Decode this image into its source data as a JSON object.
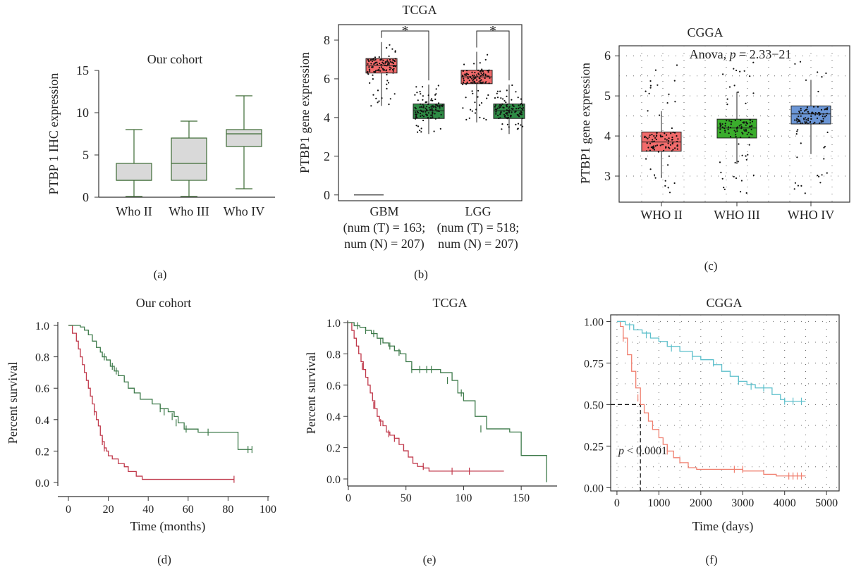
{
  "panel_labels": [
    "(a)",
    "(b)",
    "(c)",
    "(d)",
    "(e)",
    "(f)"
  ],
  "chart_data": [
    {
      "panel": "(a)",
      "type": "box",
      "title": "Our cohort",
      "ylabel": "PTBP 1 IHC expression",
      "xlabel": "",
      "ylim": [
        0,
        15
      ],
      "yticks": [
        "0",
        "5",
        "10",
        "15"
      ],
      "categories": [
        "Who II",
        "Who III",
        "Who IV"
      ],
      "boxes": [
        {
          "min": 0.1,
          "q1": 2,
          "median": 2,
          "q3": 4,
          "max": 8
        },
        {
          "min": 0.1,
          "q1": 2,
          "median": 4,
          "q3": 7,
          "max": 9
        },
        {
          "min": 1,
          "q1": 6,
          "median": 7.5,
          "q3": 8,
          "max": 12
        }
      ],
      "colors": {
        "fill": "#d9d9d9",
        "stroke": "#3d6b35"
      }
    },
    {
      "panel": "(b)",
      "type": "box",
      "title": "TCGA",
      "ylabel": "PTBP1 gene expression",
      "ylim": [
        -0.3,
        8.8
      ],
      "yticks": [
        "0",
        "2",
        "4",
        "6",
        "8"
      ],
      "groups": [
        {
          "label_lines": [
            "GBM",
            "(num (T) = 163;",
            "num (N) = 207)"
          ],
          "tumor": {
            "min": 4.6,
            "q1": 6.3,
            "median": 6.7,
            "q3": 7.05,
            "max": 7.9
          },
          "normal": {
            "min": 3.15,
            "q1": 3.95,
            "median": 4.35,
            "q3": 4.7,
            "max": 5.7
          }
        },
        {
          "label_lines": [
            "LGG",
            "(num (T) = 518;",
            "num (N) = 207)"
          ],
          "tumor": {
            "min": 3.75,
            "q1": 5.75,
            "median": 6.1,
            "q3": 6.45,
            "max": 7.4
          },
          "normal": {
            "min": 3.15,
            "q1": 3.95,
            "median": 4.35,
            "q3": 4.7,
            "max": 5.7
          }
        }
      ],
      "significance": [
        "*",
        "*"
      ],
      "colors": {
        "tumor": "#f26b6b",
        "normal": "#2e8b45",
        "star": "#e8432b"
      }
    },
    {
      "panel": "(c)",
      "type": "box",
      "title": "CGGA",
      "annotation_prefix": "Anova, ",
      "annotation_p": "p",
      "annotation_value": " = 2.33−21",
      "ylabel": "PTBP1 gene expression",
      "ylim": [
        2.35,
        6.25
      ],
      "yticks": [
        "3",
        "4",
        "5",
        "6"
      ],
      "categories": [
        "WHO II",
        "WHO III",
        "WHO IV"
      ],
      "boxes": [
        {
          "min": 2.95,
          "q1": 3.62,
          "median": 3.85,
          "q3": 4.1,
          "max": 4.62
        },
        {
          "min": 3.3,
          "q1": 3.95,
          "median": 4.2,
          "q3": 4.42,
          "max": 5.1
        },
        {
          "min": 3.55,
          "q1": 4.3,
          "median": 4.55,
          "q3": 4.75,
          "max": 5.4
        }
      ],
      "colors": [
        "#f26b6b",
        "#3aad2c",
        "#6b96d6"
      ]
    },
    {
      "panel": "(d)",
      "type": "line",
      "title": "Our cohort",
      "xlabel": "Time (months)",
      "ylabel": "Percent survival",
      "xlim": [
        0,
        100
      ],
      "ylim": [
        0,
        1
      ],
      "xticks": [
        "0",
        "20",
        "40",
        "60",
        "80",
        "100"
      ],
      "yticks": [
        "0.0",
        "0.2",
        "0.4",
        "0.6",
        "0.8",
        "1.0"
      ],
      "series": [
        {
          "color": "#c0394b",
          "x": [
            0,
            2,
            4,
            5,
            6,
            7,
            8,
            9,
            10,
            11,
            12,
            13,
            14,
            15,
            16,
            17,
            18,
            19,
            20,
            22,
            25,
            28,
            30,
            34,
            37,
            40,
            83
          ],
          "y": [
            1,
            0.95,
            0.9,
            0.85,
            0.8,
            0.75,
            0.7,
            0.65,
            0.6,
            0.55,
            0.5,
            0.45,
            0.4,
            0.36,
            0.3,
            0.26,
            0.22,
            0.2,
            0.17,
            0.15,
            0.12,
            0.1,
            0.07,
            0.04,
            0.02,
            0.02,
            0.02
          ],
          "censors": [
            [
              13,
              0.45
            ],
            [
              17,
              0.26
            ],
            [
              18,
              0.22
            ],
            [
              83,
              0.02
            ]
          ]
        },
        {
          "color": "#3d7a4a",
          "x": [
            0,
            6,
            8,
            10,
            12,
            14,
            16,
            17,
            19,
            21,
            23,
            25,
            28,
            30,
            33,
            36,
            40,
            42,
            46,
            50,
            53,
            55,
            58,
            65,
            75,
            85,
            92
          ],
          "y": [
            1,
            0.99,
            0.97,
            0.94,
            0.9,
            0.86,
            0.83,
            0.8,
            0.78,
            0.74,
            0.71,
            0.68,
            0.64,
            0.6,
            0.57,
            0.53,
            0.53,
            0.5,
            0.47,
            0.45,
            0.42,
            0.38,
            0.34,
            0.32,
            0.32,
            0.21,
            0.21
          ],
          "censors": [
            [
              18,
              0.8
            ],
            [
              22,
              0.74
            ],
            [
              24,
              0.71
            ],
            [
              46,
              0.47
            ],
            [
              48,
              0.45
            ],
            [
              52,
              0.42
            ],
            [
              54,
              0.38
            ],
            [
              59,
              0.34
            ],
            [
              70,
              0.32
            ],
            [
              90,
              0.21
            ],
            [
              92,
              0.21
            ]
          ]
        }
      ]
    },
    {
      "panel": "(e)",
      "type": "line",
      "title": "TCGA",
      "xlabel": "",
      "ylabel": "Percent survival",
      "xlim": [
        0,
        175
      ],
      "ylim": [
        0,
        1
      ],
      "xticks": [
        "0",
        "50",
        "100",
        "150"
      ],
      "yticks": [
        "0.0",
        "0.2",
        "0.4",
        "0.6",
        "0.8",
        "1.0"
      ],
      "series": [
        {
          "color": "#c0394b",
          "x": [
            0,
            3,
            5,
            7,
            9,
            11,
            13,
            15,
            17,
            19,
            21,
            23,
            25,
            27,
            30,
            33,
            36,
            40,
            44,
            48,
            52,
            56,
            60,
            65,
            70,
            135
          ],
          "y": [
            1,
            0.95,
            0.9,
            0.85,
            0.8,
            0.75,
            0.7,
            0.65,
            0.6,
            0.55,
            0.5,
            0.45,
            0.4,
            0.37,
            0.34,
            0.3,
            0.28,
            0.26,
            0.22,
            0.18,
            0.14,
            0.1,
            0.08,
            0.07,
            0.05,
            0.05
          ],
          "censors": [
            [
              12,
              0.72
            ],
            [
              22,
              0.47
            ],
            [
              28,
              0.36
            ],
            [
              35,
              0.29
            ],
            [
              40,
              0.26
            ],
            [
              48,
              0.2
            ],
            [
              65,
              0.08
            ],
            [
              90,
              0.05
            ],
            [
              105,
              0.05
            ]
          ]
        },
        {
          "color": "#3d7a4a",
          "x": [
            0,
            5,
            10,
            15,
            20,
            25,
            30,
            35,
            40,
            45,
            50,
            55,
            60,
            70,
            80,
            90,
            95,
            100,
            110,
            120,
            135,
            140,
            150,
            172
          ],
          "y": [
            1,
            0.98,
            0.97,
            0.95,
            0.93,
            0.9,
            0.87,
            0.85,
            0.82,
            0.8,
            0.75,
            0.7,
            0.7,
            0.7,
            0.68,
            0.63,
            0.55,
            0.5,
            0.4,
            0.32,
            0.32,
            0.3,
            0.15,
            -0.02
          ],
          "censors": [
            [
              8,
              0.98
            ],
            [
              15,
              0.95
            ],
            [
              22,
              0.93
            ],
            [
              28,
              0.88
            ],
            [
              36,
              0.85
            ],
            [
              44,
              0.81
            ],
            [
              55,
              0.7
            ],
            [
              62,
              0.7
            ],
            [
              68,
              0.7
            ],
            [
              72,
              0.7
            ],
            [
              86,
              0.63
            ],
            [
              98,
              0.55
            ],
            [
              115,
              0.32
            ]
          ]
        }
      ]
    },
    {
      "panel": "(f)",
      "type": "line",
      "title": "CGGA",
      "xlabel": "Time (days)",
      "ylabel": "",
      "xlim": [
        -150,
        5300
      ],
      "ylim": [
        -0.02,
        1.04
      ],
      "xticks": [
        "0",
        "1000",
        "2000",
        "3000",
        "4000",
        "5000"
      ],
      "yticks": [
        "0.00",
        "0.25",
        "0.50",
        "0.75",
        "1.00"
      ],
      "median_line": {
        "x": 560,
        "y": 0.5
      },
      "annotation_p": "p",
      "annotation_value": " < 0.0001",
      "series": [
        {
          "color": "#f08070",
          "x": [
            0,
            80,
            150,
            250,
            350,
            450,
            560,
            650,
            750,
            850,
            1000,
            1100,
            1200,
            1350,
            1500,
            1700,
            1900,
            2100,
            2600,
            3000,
            3500,
            3800,
            4500
          ],
          "y": [
            1,
            0.97,
            0.9,
            0.8,
            0.7,
            0.6,
            0.5,
            0.45,
            0.4,
            0.35,
            0.3,
            0.26,
            0.22,
            0.18,
            0.15,
            0.12,
            0.11,
            0.11,
            0.11,
            0.1,
            0.08,
            0.07,
            0.07
          ],
          "censors": [
            [
              150,
              0.9
            ],
            [
              500,
              0.54
            ],
            [
              1200,
              0.22
            ],
            [
              2800,
              0.11
            ],
            [
              3000,
              0.11
            ],
            [
              4100,
              0.07
            ],
            [
              4200,
              0.07
            ],
            [
              4300,
              0.07
            ],
            [
              4400,
              0.07
            ]
          ]
        },
        {
          "color": "#5fc0cc",
          "x": [
            0,
            200,
            400,
            600,
            800,
            1000,
            1200,
            1500,
            1800,
            2000,
            2300,
            2500,
            2700,
            2900,
            3100,
            3300,
            3500,
            3700,
            3900,
            4000,
            4500
          ],
          "y": [
            1,
            0.98,
            0.95,
            0.93,
            0.9,
            0.88,
            0.85,
            0.82,
            0.79,
            0.77,
            0.74,
            0.7,
            0.67,
            0.64,
            0.62,
            0.6,
            0.6,
            0.56,
            0.53,
            0.52,
            0.52
          ],
          "censors": [
            [
              300,
              0.97
            ],
            [
              700,
              0.92
            ],
            [
              1300,
              0.84
            ],
            [
              1800,
              0.79
            ],
            [
              2300,
              0.75
            ],
            [
              2900,
              0.64
            ],
            [
              3200,
              0.61
            ],
            [
              3500,
              0.6
            ],
            [
              4000,
              0.52
            ],
            [
              4200,
              0.52
            ],
            [
              4400,
              0.52
            ]
          ]
        }
      ]
    }
  ]
}
